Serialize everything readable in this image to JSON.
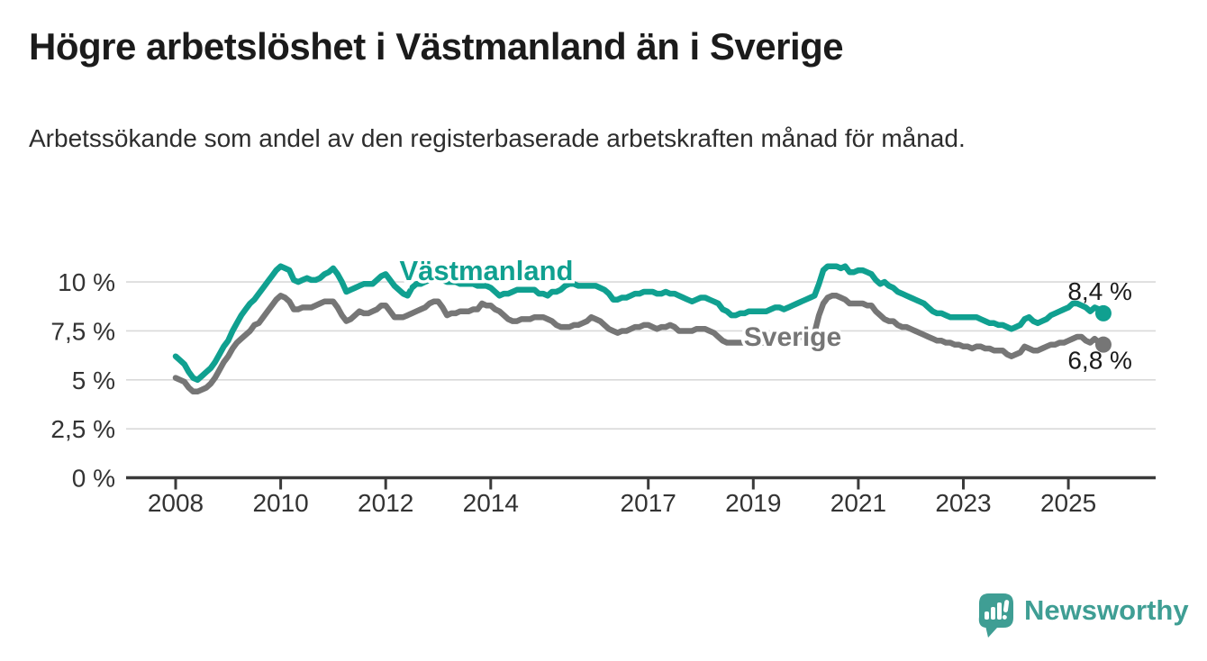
{
  "header": {
    "title": "Högre arbetslöshet i Västmanland än i Sverige",
    "subtitle": "Arbetssökande som andel av den registerbaserade arbetskraften månad för månad."
  },
  "chart_data": {
    "type": "line",
    "unit": "%",
    "frequency": "monthly",
    "start": "2008-01",
    "end": "2025-09",
    "grid": "horizontal",
    "legend_position": "inline-labels",
    "y_axis": {
      "ticks": [
        0,
        2.5,
        5,
        7.5,
        10
      ],
      "tick_labels": [
        "0 %",
        "2,5 %",
        "5 %",
        "7,5 %",
        "10 %"
      ],
      "range": [
        0,
        11.3
      ]
    },
    "x_axis": {
      "ticks": [
        2008,
        2010,
        2012,
        2014,
        2017,
        2019,
        2021,
        2023,
        2025
      ],
      "tick_labels": [
        "2008",
        "2010",
        "2012",
        "2014",
        "2017",
        "2019",
        "2021",
        "2023",
        "2025"
      ],
      "range": [
        2007.1,
        2026.6
      ]
    },
    "series": [
      {
        "name": "Västmanland",
        "color": "#10a090",
        "end_label": "8,4 %",
        "end_value": 8.4,
        "values": [
          6.2,
          6.0,
          5.8,
          5.4,
          5.1,
          5.0,
          5.2,
          5.4,
          5.6,
          5.9,
          6.3,
          6.7,
          7.0,
          7.5,
          7.9,
          8.3,
          8.6,
          8.9,
          9.1,
          9.4,
          9.7,
          10.0,
          10.3,
          10.6,
          10.8,
          10.7,
          10.6,
          10.1,
          10.0,
          10.1,
          10.2,
          10.1,
          10.1,
          10.2,
          10.4,
          10.5,
          10.7,
          10.4,
          10.0,
          9.5,
          9.6,
          9.7,
          9.8,
          9.9,
          9.9,
          9.9,
          10.1,
          10.3,
          10.4,
          10.1,
          9.8,
          9.6,
          9.4,
          9.3,
          9.7,
          9.9,
          9.9,
          10.0,
          10.1,
          10.2,
          10.2,
          10.1,
          10.0,
          10.0,
          10.0,
          9.9,
          9.9,
          9.9,
          9.9,
          9.8,
          9.8,
          9.8,
          9.7,
          9.5,
          9.3,
          9.4,
          9.4,
          9.5,
          9.6,
          9.6,
          9.6,
          9.6,
          9.6,
          9.4,
          9.4,
          9.3,
          9.5,
          9.5,
          9.6,
          9.8,
          9.9,
          9.9,
          9.8,
          9.8,
          9.8,
          9.8,
          9.8,
          9.7,
          9.6,
          9.4,
          9.1,
          9.1,
          9.2,
          9.2,
          9.3,
          9.4,
          9.4,
          9.5,
          9.5,
          9.5,
          9.4,
          9.4,
          9.5,
          9.4,
          9.4,
          9.3,
          9.2,
          9.1,
          9.0,
          9.1,
          9.2,
          9.2,
          9.1,
          9.0,
          8.9,
          8.6,
          8.5,
          8.3,
          8.3,
          8.4,
          8.4,
          8.5,
          8.5,
          8.5,
          8.5,
          8.5,
          8.6,
          8.7,
          8.7,
          8.6,
          8.7,
          8.8,
          8.9,
          9.0,
          9.1,
          9.2,
          9.3,
          9.9,
          10.6,
          10.8,
          10.8,
          10.8,
          10.7,
          10.8,
          10.5,
          10.5,
          10.6,
          10.6,
          10.5,
          10.4,
          10.1,
          9.9,
          10.0,
          9.8,
          9.7,
          9.5,
          9.4,
          9.3,
          9.2,
          9.1,
          9.0,
          8.9,
          8.7,
          8.5,
          8.4,
          8.4,
          8.3,
          8.2,
          8.2,
          8.2,
          8.2,
          8.2,
          8.2,
          8.2,
          8.1,
          8.0,
          7.9,
          7.9,
          7.8,
          7.8,
          7.7,
          7.6,
          7.7,
          7.8,
          8.1,
          8.2,
          8.0,
          7.9,
          8.0,
          8.1,
          8.3,
          8.4,
          8.5,
          8.6,
          8.7,
          8.9,
          8.9,
          8.8,
          8.7,
          8.5,
          8.7,
          8.6,
          8.4
        ]
      },
      {
        "name": "Sverige",
        "color": "#767676",
        "end_label": "6,8 %",
        "end_value": 6.8,
        "values": [
          5.1,
          5.0,
          4.9,
          4.6,
          4.4,
          4.4,
          4.5,
          4.6,
          4.8,
          5.1,
          5.5,
          5.9,
          6.2,
          6.6,
          6.9,
          7.1,
          7.3,
          7.5,
          7.8,
          7.9,
          8.2,
          8.5,
          8.8,
          9.1,
          9.3,
          9.2,
          9.0,
          8.6,
          8.6,
          8.7,
          8.7,
          8.7,
          8.8,
          8.9,
          9.0,
          9.0,
          9.0,
          8.7,
          8.3,
          8.0,
          8.1,
          8.3,
          8.5,
          8.4,
          8.4,
          8.5,
          8.6,
          8.8,
          8.8,
          8.5,
          8.2,
          8.2,
          8.2,
          8.3,
          8.4,
          8.5,
          8.6,
          8.7,
          8.9,
          9.0,
          9.0,
          8.7,
          8.3,
          8.4,
          8.4,
          8.5,
          8.5,
          8.5,
          8.6,
          8.6,
          8.9,
          8.8,
          8.8,
          8.6,
          8.5,
          8.3,
          8.1,
          8.0,
          8.0,
          8.1,
          8.1,
          8.1,
          8.2,
          8.2,
          8.2,
          8.1,
          8.0,
          7.8,
          7.7,
          7.7,
          7.7,
          7.8,
          7.8,
          7.9,
          8.0,
          8.2,
          8.1,
          8.0,
          7.8,
          7.6,
          7.5,
          7.4,
          7.5,
          7.5,
          7.6,
          7.7,
          7.7,
          7.8,
          7.8,
          7.7,
          7.6,
          7.7,
          7.7,
          7.8,
          7.7,
          7.5,
          7.5,
          7.5,
          7.5,
          7.6,
          7.6,
          7.6,
          7.5,
          7.4,
          7.2,
          7.0,
          6.9,
          6.9,
          6.9,
          6.9,
          6.9,
          6.9,
          6.9,
          6.9,
          6.9,
          6.9,
          6.9,
          7.0,
          7.0,
          7.0,
          7.0,
          7.1,
          7.1,
          7.2,
          7.2,
          7.3,
          7.4,
          8.3,
          8.9,
          9.2,
          9.3,
          9.3,
          9.2,
          9.1,
          8.9,
          8.9,
          8.9,
          8.9,
          8.8,
          8.8,
          8.5,
          8.3,
          8.1,
          8.0,
          8.0,
          7.8,
          7.7,
          7.7,
          7.6,
          7.5,
          7.4,
          7.3,
          7.2,
          7.1,
          7.0,
          7.0,
          6.9,
          6.9,
          6.8,
          6.8,
          6.7,
          6.7,
          6.6,
          6.7,
          6.7,
          6.6,
          6.6,
          6.5,
          6.5,
          6.5,
          6.3,
          6.2,
          6.3,
          6.4,
          6.7,
          6.6,
          6.5,
          6.5,
          6.6,
          6.7,
          6.8,
          6.8,
          6.9,
          6.9,
          7.0,
          7.1,
          7.2,
          7.2,
          7.0,
          6.9,
          7.1,
          6.9,
          6.8
        ]
      }
    ],
    "colors": {
      "grid": "#d9d9d9",
      "axis": "#3a3a3a",
      "label_text": "#333333",
      "value_label_text": "#1a1a1a"
    }
  },
  "footer": {
    "brand": "Newsworthy",
    "brand_color": "#3f9e94",
    "logo_icon": "bar-chart-speech-bubble"
  }
}
